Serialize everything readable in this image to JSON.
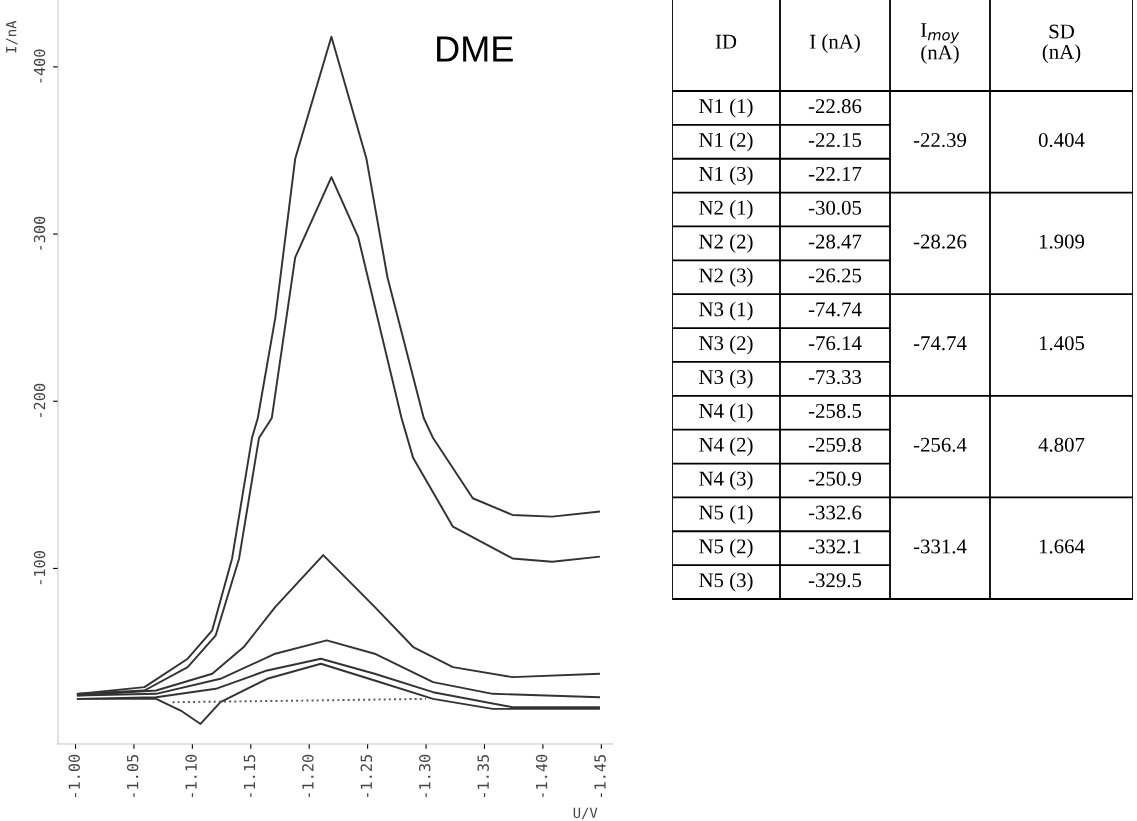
{
  "chart_data": [
    {
      "type": "line",
      "title": "DME",
      "xlabel": "U/V",
      "ylabel": "I/nA",
      "xlim": [
        -0.985,
        -1.46
      ],
      "ylim": [
        5,
        -440
      ],
      "xticks": [
        {
          "value": -1.0,
          "label": "-1.00"
        },
        {
          "value": -1.05,
          "label": "-1.05"
        },
        {
          "value": -1.1,
          "label": "-1.10"
        },
        {
          "value": -1.15,
          "label": "-1.15"
        },
        {
          "value": -1.2,
          "label": "-1.20"
        },
        {
          "value": -1.25,
          "label": "-1.25"
        },
        {
          "value": -1.3,
          "label": "-1.30"
        },
        {
          "value": -1.35,
          "label": "-1.35"
        },
        {
          "value": -1.4,
          "label": "-1.40"
        },
        {
          "value": -1.45,
          "label": "-1.45"
        }
      ],
      "yticks": [
        -400,
        -300,
        -200,
        -100
      ],
      "grid": false,
      "legend": false,
      "marker": "none",
      "series": [
        {
          "color": "#333333",
          "x": [
            -1.002,
            -1.059,
            -1.096,
            -1.117,
            -1.134,
            -1.151,
            -1.156,
            -1.171,
            -1.188,
            -1.219,
            -1.249,
            -1.267,
            -1.298,
            -1.306,
            -1.34,
            -1.374,
            -1.408,
            -1.448
          ],
          "values": [
            -25,
            -29,
            -46,
            -63,
            -106,
            -178,
            -190,
            -250,
            -345,
            -418,
            -345,
            -274,
            -190,
            -178,
            -142,
            -132,
            -131,
            -134
          ]
        },
        {
          "color": "#333333",
          "x": [
            -1.002,
            -1.059,
            -1.096,
            -1.12,
            -1.14,
            -1.157,
            -1.168,
            -1.188,
            -1.219,
            -1.242,
            -1.279,
            -1.289,
            -1.323,
            -1.374,
            -1.408,
            -1.448
          ],
          "values": [
            -25,
            -27,
            -41,
            -60,
            -106,
            -178,
            -190,
            -286,
            -334,
            -298,
            -190,
            -166,
            -125,
            -106,
            -104,
            -107
          ]
        },
        {
          "color": "#333333",
          "x": [
            -1.002,
            -1.069,
            -1.117,
            -1.144,
            -1.171,
            -1.212,
            -1.256,
            -1.289,
            -1.323,
            -1.374,
            -1.448
          ],
          "values": [
            -24,
            -27,
            -37,
            -53,
            -77,
            -108,
            -77,
            -53,
            -41,
            -35,
            -37
          ]
        },
        {
          "color": "#333333",
          "x": [
            -1.002,
            -1.069,
            -1.124,
            -1.171,
            -1.215,
            -1.256,
            -1.306,
            -1.357,
            -1.448
          ],
          "values": [
            -24,
            -25,
            -34,
            -49,
            -57,
            -49,
            -32,
            -25,
            -23
          ]
        },
        {
          "color": "#333333",
          "x": [
            -1.002,
            -1.069,
            -1.12,
            -1.164,
            -1.21,
            -1.256,
            -1.306,
            -1.374,
            -1.448
          ],
          "values": [
            -22,
            -23,
            -28,
            -39,
            -46,
            -37,
            -26,
            -17,
            -17
          ]
        },
        {
          "color": "#333333",
          "x": [
            -1.002,
            -1.069,
            -1.09,
            -1.107,
            -1.124,
            -1.164,
            -1.21,
            -1.256,
            -1.306,
            -1.357,
            -1.448
          ],
          "values": [
            -22,
            -22,
            -15,
            -7,
            -20,
            -34,
            -43,
            -33,
            -22,
            -16,
            -16
          ]
        },
        {
          "color": "#555555",
          "line_style": "dotted",
          "x": [
            -1.083,
            -1.2,
            -1.3
          ],
          "values": [
            -20,
            -21,
            -22
          ]
        }
      ]
    },
    {
      "type": "other",
      "categories": [
        "ID",
        "I (nA)",
        "I$_{moy}$\n(nA)",
        "SD\n(nA)"
      ],
      "cell_labels": [
        [
          "N1 (1)",
          "-22.86",
          "-22.39",
          "0.404"
        ],
        [
          "N1 (2)",
          "-22.15",
          null,
          null
        ],
        [
          "N1 (3)",
          "-22.17",
          null,
          null
        ],
        [
          "N2 (1)",
          "-30.05",
          "-28.26",
          "1.909"
        ],
        [
          "N2 (2)",
          "-28.47",
          null,
          null
        ],
        [
          "N2 (3)",
          "-26.25",
          null,
          null
        ],
        [
          "N3 (1)",
          "-74.74",
          "-74.74",
          "1.405"
        ],
        [
          "N3 (2)",
          "-76.14",
          null,
          null
        ],
        [
          "N3 (3)",
          "-73.33",
          null,
          null
        ],
        [
          "N4 (1)",
          "-258.5",
          "-256.4",
          "4.807"
        ],
        [
          "N4 (2)",
          "-259.8",
          null,
          null
        ],
        [
          "N4 (3)",
          "-250.9",
          null,
          null
        ],
        [
          "N5 (1)",
          "-332.6",
          "-331.4",
          "1.664"
        ],
        [
          "N5 (2)",
          "-332.1",
          null,
          null
        ],
        [
          "N5 (3)",
          "-329.5",
          null,
          null
        ]
      ]
    }
  ]
}
